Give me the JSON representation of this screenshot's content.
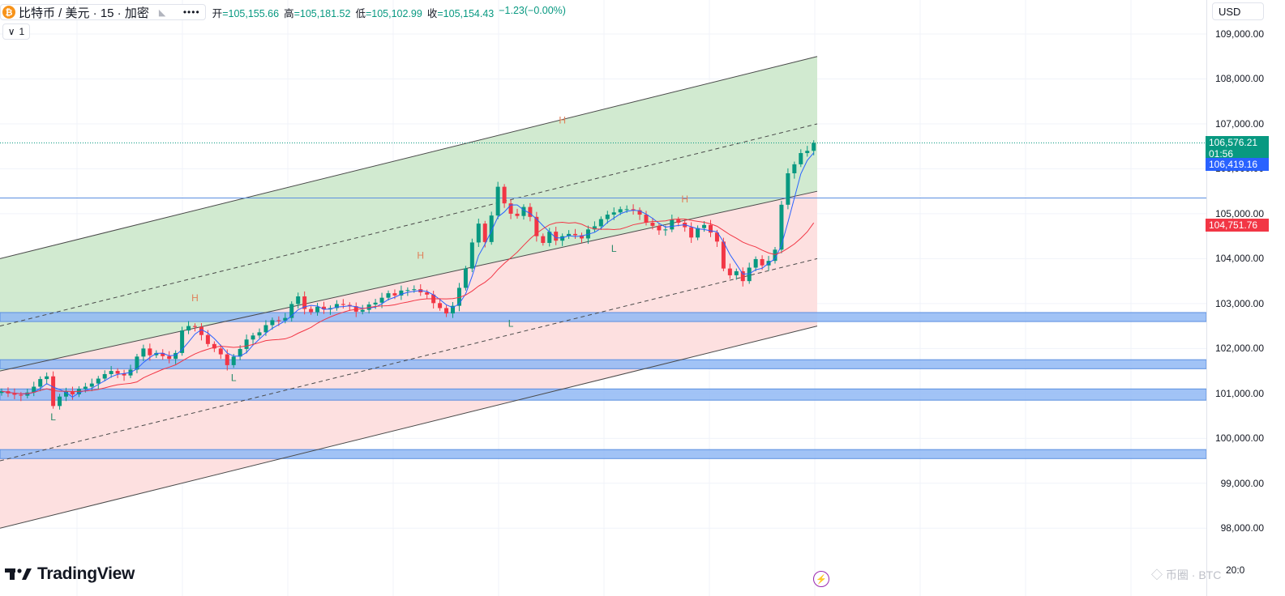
{
  "header": {
    "symbol_icon": "₿",
    "symbol_title": "比特币 / 美元 · 15 · 加密",
    "more_label": "••••",
    "ohlc": [
      {
        "label": "开",
        "value": "=105,155.66"
      },
      {
        "label": "高",
        "value": "=105,181.52"
      },
      {
        "label": "低",
        "value": "=105,102.99"
      },
      {
        "label": "收",
        "value": "=105,154.43"
      },
      {
        "label": "",
        "value": "−1.23(−0.00%)"
      }
    ],
    "indicator_count": "1",
    "indicator_chevron": "∨"
  },
  "axis": {
    "currency": "USD",
    "ticks": [
      "109,000.00",
      "108,000.00",
      "107,000.00",
      "106,000.00",
      "105,000.00",
      "104,000.00",
      "103,000.00",
      "102,000.00",
      "101,000.00",
      "100,000.00",
      "99,000.00",
      "98,000.00"
    ],
    "badge_last_price": "106,576.21",
    "badge_countdown": "01:56",
    "badge_ma_fast": "106,419.16",
    "badge_ma_slow": "104,751.76",
    "bottom_time": "20:0"
  },
  "brand": {
    "name": "TradingView",
    "lightning_icon": "⚡",
    "watermark_text": "◇ 币圈 · BTC"
  },
  "colors": {
    "up": "#089981",
    "down": "#f23645",
    "ma_fast": "#2962ff",
    "ma_slow": "#f23645",
    "channel_upper_fill": "#d1ead0",
    "channel_lower_fill": "#fde0e0",
    "zone_fill": "#90b8f5",
    "last_price_badge": "#089981",
    "ma_fast_badge": "#2962ff",
    "ma_slow_badge": "#f23645"
  },
  "chart_data": {
    "type": "candlestick",
    "title": "比特币 / 美元 · 15 · 加密",
    "ylabel": "USD",
    "ylim": [
      97700,
      109200
    ],
    "last_price": 106576.21,
    "ma_fast_value": 106419.16,
    "ma_slow_value": 104751.76,
    "horizontal_line": 105350,
    "closes": [
      101050,
      101000,
      100970,
      100950,
      101020,
      101150,
      101320,
      101380,
      100720,
      100930,
      101040,
      100980,
      101100,
      101150,
      101220,
      101330,
      101430,
      101500,
      101440,
      101400,
      101530,
      101820,
      102000,
      101850,
      101900,
      101830,
      101770,
      101900,
      102400,
      102500,
      102480,
      102300,
      102100,
      102000,
      101870,
      101630,
      101820,
      101990,
      102200,
      102290,
      102360,
      102520,
      102630,
      102620,
      102680,
      102990,
      103160,
      102880,
      102810,
      102930,
      102870,
      102900,
      102990,
      102970,
      102940,
      102820,
      102860,
      102980,
      103020,
      103130,
      103230,
      103180,
      103290,
      103300,
      103320,
      103250,
      103200,
      103010,
      102900,
      102780,
      102950,
      103350,
      103780,
      104360,
      104780,
      104370,
      104960,
      105600,
      105230,
      105000,
      104950,
      105150,
      104930,
      104500,
      104350,
      104600,
      104400,
      104500,
      104550,
      104520,
      104450,
      104650,
      104720,
      104880,
      104980,
      105030,
      105100,
      105100,
      105080,
      104980,
      104800,
      104730,
      104630,
      104650,
      104870,
      104800,
      104700,
      104470,
      104680,
      104750,
      104580,
      104380,
      103780,
      103630,
      103720,
      103500,
      103800,
      103990,
      103850,
      103950,
      104200,
      105200,
      105900,
      106100,
      106350,
      106400,
      106576
    ],
    "channel": {
      "upper_start": 104000,
      "upper_end": 108500,
      "mid_start": 102500,
      "mid_end": 107000,
      "lower_start": 98000,
      "lower_end": 102500
    },
    "zones": [
      {
        "low": 102600,
        "high": 102800
      },
      {
        "low": 101550,
        "high": 101750
      },
      {
        "low": 100850,
        "high": 101100
      },
      {
        "low": 99550,
        "high": 99750
      }
    ],
    "swing_labels": [
      {
        "text": "L",
        "price": 100400,
        "bar": 8
      },
      {
        "text": "H",
        "price": 103050,
        "bar": 30
      },
      {
        "text": "L",
        "price": 101280,
        "bar": 36
      },
      {
        "text": "H",
        "price": 104000,
        "bar": 65
      },
      {
        "text": "L",
        "price": 102480,
        "bar": 79
      },
      {
        "text": "H",
        "price": 107010,
        "bar": 87
      },
      {
        "text": "L",
        "price": 104150,
        "bar": 95
      },
      {
        "text": "H",
        "price": 105250,
        "bar": 106
      }
    ]
  }
}
